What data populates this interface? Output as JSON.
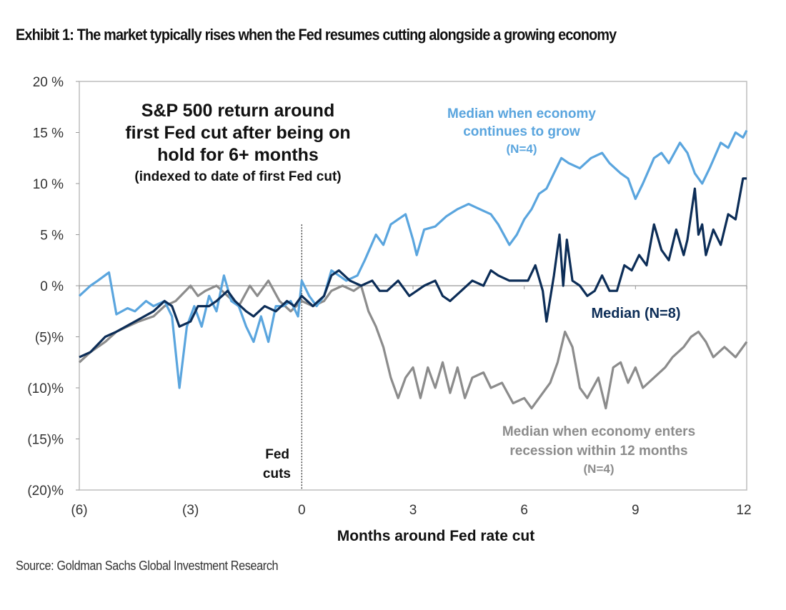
{
  "exhibit_title": "Exhibit 1: The market typically rises when the Fed resumes cutting alongside a growing economy",
  "source": "Source: Goldman Sachs Global Investment Research",
  "chart_data": {
    "type": "line",
    "title_lines": [
      "S&P 500 return around",
      "first Fed cut after being on",
      "hold for 6+ months",
      "(indexed to date of first Fed cut)"
    ],
    "xlabel": "Months around Fed rate cut",
    "ylabel": "",
    "xlim": [
      -6,
      12
    ],
    "ylim": [
      -20,
      20
    ],
    "x_ticks": [
      -6,
      -3,
      0,
      3,
      6,
      9,
      12
    ],
    "x_tick_labels": [
      "(6)",
      "(3)",
      "0",
      "3",
      "6",
      "9",
      "12"
    ],
    "y_ticks": [
      20,
      15,
      10,
      5,
      0,
      -5,
      -10,
      -15,
      -20
    ],
    "y_tick_labels": [
      "20 %",
      "15 %",
      "10 %",
      "5 %",
      "0 %",
      "(5)%",
      "(10)%",
      "(15)%",
      "(20)%"
    ],
    "grid": false,
    "vline": {
      "x": 0,
      "label_lines": [
        "Fed",
        "cuts"
      ]
    },
    "series": [
      {
        "name": "Median when economy enters recession within 12 months (N=4)",
        "label_lines": [
          "Median when economy  enters",
          "recession within 12 months",
          "(N=4)"
        ],
        "color": "#8c8c8c",
        "x": [
          -6,
          -5.7,
          -5.3,
          -5.0,
          -4.7,
          -4.4,
          -4.0,
          -3.7,
          -3.4,
          -3.0,
          -2.8,
          -2.6,
          -2.3,
          -2.0,
          -1.7,
          -1.4,
          -1.2,
          -0.9,
          -0.6,
          -0.3,
          0,
          0.3,
          0.6,
          0.8,
          1.1,
          1.4,
          1.6,
          1.8,
          2.0,
          2.2,
          2.4,
          2.6,
          2.8,
          3.0,
          3.2,
          3.4,
          3.6,
          3.8,
          4.0,
          4.2,
          4.4,
          4.6,
          4.9,
          5.1,
          5.4,
          5.7,
          6.0,
          6.2,
          6.4,
          6.7,
          6.9,
          7.1,
          7.3,
          7.5,
          7.7,
          8.0,
          8.2,
          8.4,
          8.6,
          8.8,
          9.0,
          9.2,
          9.5,
          9.8,
          10.0,
          10.3,
          10.5,
          10.7,
          10.9,
          11.1,
          11.4,
          11.7,
          12
        ],
        "y": [
          -7.5,
          -6.5,
          -5.5,
          -4.5,
          -4,
          -3.5,
          -3,
          -2,
          -1.5,
          0,
          -1,
          -0.5,
          0,
          -1,
          -2,
          0,
          -1,
          0.5,
          -1.5,
          -2.5,
          -1.5,
          -2,
          -1.5,
          -0.5,
          0,
          -0.5,
          0,
          -2.5,
          -4,
          -6,
          -9,
          -11,
          -9,
          -8,
          -11,
          -8,
          -10,
          -7.5,
          -10.5,
          -8,
          -11,
          -9,
          -8.5,
          -10,
          -9.5,
          -11.5,
          -11,
          -12,
          -11,
          -9.5,
          -7.5,
          -4.5,
          -6,
          -10,
          -11,
          -9,
          -12,
          -8,
          -7.5,
          -9.5,
          -8,
          -10,
          -9,
          -8,
          -7,
          -6,
          -5,
          -4.5,
          -5.5,
          -7,
          -6,
          -7,
          -5.5
        ]
      },
      {
        "name": "Median when economy continues to grow (N=4)",
        "label_lines": [
          "Median when economy",
          "continues to grow",
          "(N=4)"
        ],
        "color": "#5aa5de",
        "x": [
          -6,
          -5.7,
          -5.5,
          -5.2,
          -5.0,
          -4.7,
          -4.5,
          -4.2,
          -4.0,
          -3.7,
          -3.5,
          -3.3,
          -3.1,
          -2.9,
          -2.7,
          -2.5,
          -2.3,
          -2.1,
          -1.9,
          -1.7,
          -1.5,
          -1.3,
          -1.1,
          -0.9,
          -0.7,
          -0.5,
          -0.3,
          -0.1,
          0,
          0.2,
          0.4,
          0.6,
          0.8,
          1.0,
          1.2,
          1.5,
          1.7,
          2.0,
          2.2,
          2.4,
          2.6,
          2.8,
          3.0,
          3.1,
          3.3,
          3.6,
          3.9,
          4.2,
          4.5,
          4.8,
          5.1,
          5.3,
          5.6,
          5.8,
          6.0,
          6.2,
          6.4,
          6.6,
          6.8,
          7.0,
          7.2,
          7.5,
          7.8,
          8.1,
          8.3,
          8.6,
          8.8,
          9.0,
          9.2,
          9.5,
          9.7,
          9.9,
          10.2,
          10.4,
          10.6,
          10.8,
          11.0,
          11.3,
          11.5,
          11.7,
          11.9,
          12
        ],
        "y": [
          -1,
          0,
          0.5,
          1.3,
          -2.8,
          -2.2,
          -2.5,
          -1.5,
          -2,
          -1.5,
          -3,
          -10,
          -4,
          -2,
          -4,
          -1,
          -2.5,
          1,
          -1.5,
          -2,
          -4,
          -5.5,
          -3,
          -5.5,
          -2,
          -2,
          -1.5,
          -3,
          0.5,
          -1,
          -2,
          -1,
          1.5,
          1,
          0.5,
          1,
          2.5,
          5,
          4,
          6,
          6.5,
          7,
          4.5,
          3,
          5.5,
          5.8,
          6.8,
          7.5,
          8,
          7.5,
          7,
          6,
          4,
          5,
          6.5,
          7.5,
          9,
          9.5,
          11,
          12.5,
          12,
          11.5,
          12.5,
          13,
          12,
          11,
          10.5,
          8.5,
          10,
          12.5,
          13,
          12,
          14,
          13,
          11,
          10,
          11.5,
          14,
          13.5,
          15,
          14.5,
          15.2
        ]
      },
      {
        "name": "Median (N=8)",
        "label_lines": [
          "Median (N=8)"
        ],
        "color": "#0c2d57",
        "x": [
          -6,
          -5.7,
          -5.3,
          -5.0,
          -4.5,
          -4.0,
          -3.7,
          -3.5,
          -3.3,
          -3.0,
          -2.8,
          -2.5,
          -2.3,
          -2.0,
          -1.8,
          -1.5,
          -1.3,
          -1.0,
          -0.7,
          -0.4,
          -0.2,
          0,
          0.3,
          0.6,
          0.8,
          1.0,
          1.3,
          1.6,
          1.9,
          2.1,
          2.3,
          2.6,
          2.9,
          3.1,
          3.3,
          3.6,
          3.8,
          4.0,
          4.3,
          4.6,
          4.9,
          5.1,
          5.3,
          5.6,
          5.9,
          6.1,
          6.3,
          6.5,
          6.6,
          6.8,
          6.95,
          7.05,
          7.15,
          7.3,
          7.5,
          7.7,
          7.9,
          8.1,
          8.3,
          8.5,
          8.7,
          8.9,
          9.1,
          9.3,
          9.5,
          9.7,
          9.9,
          10.1,
          10.3,
          10.4,
          10.6,
          10.7,
          10.8,
          10.9,
          11.1,
          11.3,
          11.5,
          11.7,
          11.9,
          12
        ],
        "y": [
          -7,
          -6.5,
          -5,
          -4.5,
          -3.5,
          -2.5,
          -1.5,
          -2,
          -4,
          -3.5,
          -2,
          -2,
          -1.5,
          -0.5,
          -1.5,
          -2.5,
          -3,
          -2,
          -2.5,
          -1.5,
          -2,
          -1,
          -2,
          -1,
          1,
          1.5,
          0.5,
          0,
          0.5,
          -0.5,
          -0.5,
          0.5,
          -1,
          -0.5,
          0,
          0.5,
          -1,
          -1.5,
          -0.5,
          0.5,
          0,
          1.5,
          1,
          0.5,
          0.5,
          0.5,
          2,
          -0.5,
          -3.5,
          1,
          5,
          0,
          4.5,
          0.5,
          0,
          -1,
          -0.5,
          1,
          -0.5,
          -0.5,
          2,
          1.5,
          3,
          2,
          6,
          3.5,
          2.5,
          5.5,
          3,
          4.5,
          9.5,
          5,
          6,
          3,
          5.5,
          4,
          7,
          6.5,
          10.5,
          10.5
        ]
      }
    ]
  }
}
